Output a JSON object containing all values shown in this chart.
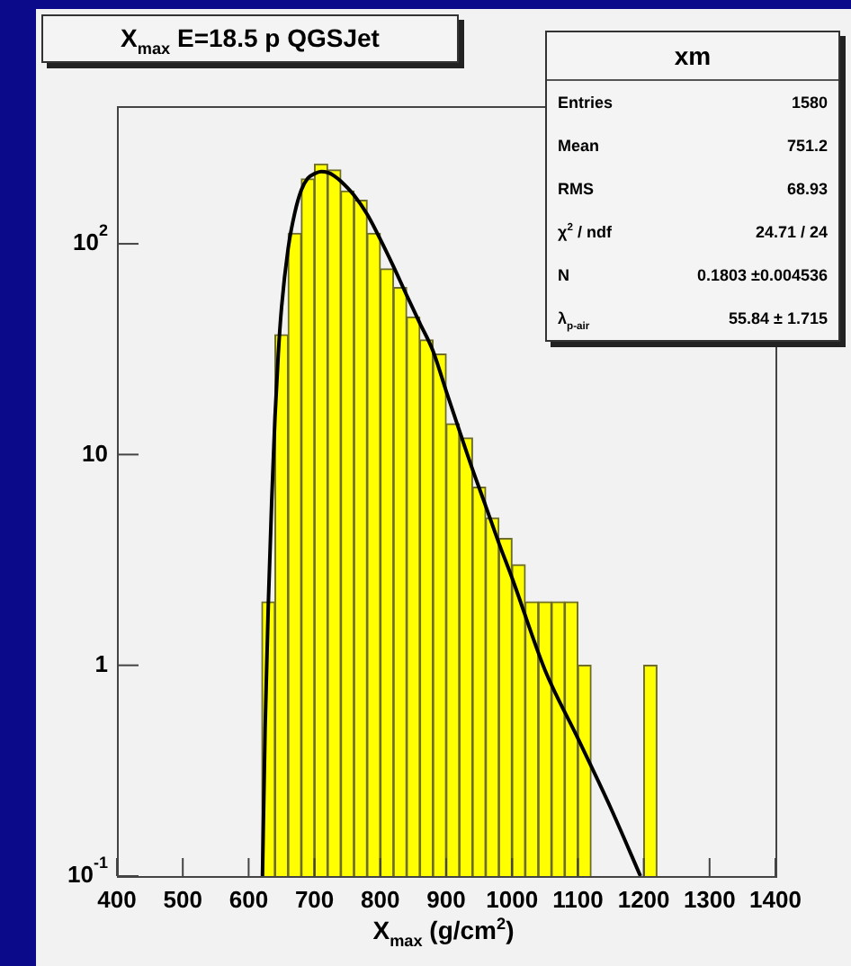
{
  "chart_data": {
    "type": "histogram",
    "title": "X$_{max}$ E=18.5 p QGSJet",
    "xlabel": "X$_{max}$ (g/cm$^{2}$)",
    "xlim": [
      400,
      1400
    ],
    "xticks": [
      400,
      500,
      600,
      700,
      800,
      900,
      1000,
      1100,
      1200,
      1300,
      1400
    ],
    "ylim": [
      0.1,
      450
    ],
    "yticks": [
      {
        "value": 0.1,
        "label": "10$^{-1}$"
      },
      1,
      10,
      {
        "value": 100,
        "label": "10$^{2}$"
      }
    ],
    "log": true,
    "grid": false,
    "marker": "none",
    "series": [
      {
        "color": "#ffff00",
        "bins": [
          620,
          640,
          660,
          680,
          700,
          720,
          740,
          760,
          780,
          800,
          820,
          840,
          860,
          880,
          900,
          920,
          940,
          960,
          980,
          1000,
          1020,
          1040,
          1060,
          1080,
          1100,
          1120,
          1140,
          1160,
          1180,
          1200,
          1220
        ],
        "values": [
          2,
          37,
          112,
          203,
          239,
          224,
          178,
          161,
          112,
          76,
          62,
          45,
          35,
          30,
          14,
          12,
          7,
          5,
          4,
          3,
          2,
          2,
          2,
          2,
          1,
          null,
          null,
          null,
          null,
          1
        ]
      },
      {
        "type": "line",
        "color": "#000000",
        "x": [
          621,
          625,
          630,
          635,
          640,
          645,
          650,
          660,
          670,
          680,
          690,
          700,
          710,
          720,
          730,
          740,
          760,
          780,
          800,
          820,
          840,
          860,
          880,
          900,
          920,
          940,
          960,
          980,
          1000,
          1050,
          1100,
          1150,
          1195
        ],
        "values": [
          0.1,
          0.5,
          2,
          6,
          15,
          30,
          50,
          95,
          140,
          180,
          205,
          215,
          220,
          218,
          210,
          198,
          170,
          138,
          105,
          78,
          57,
          42,
          31,
          20,
          13,
          8.5,
          5.7,
          3.8,
          2.6,
          0.95,
          0.45,
          0.21,
          0.1
        ]
      }
    ],
    "annotations": [
      "xm",
      "Entries",
      "1580",
      "Mean",
      "751.2",
      "RMS",
      "68.93",
      "χ$^{2}$ / ndf",
      "24.71 / 24",
      "N",
      "0.1803 ±0.004536",
      "λ$_{p-air}$",
      "55.84 ± 1.715"
    ]
  }
}
